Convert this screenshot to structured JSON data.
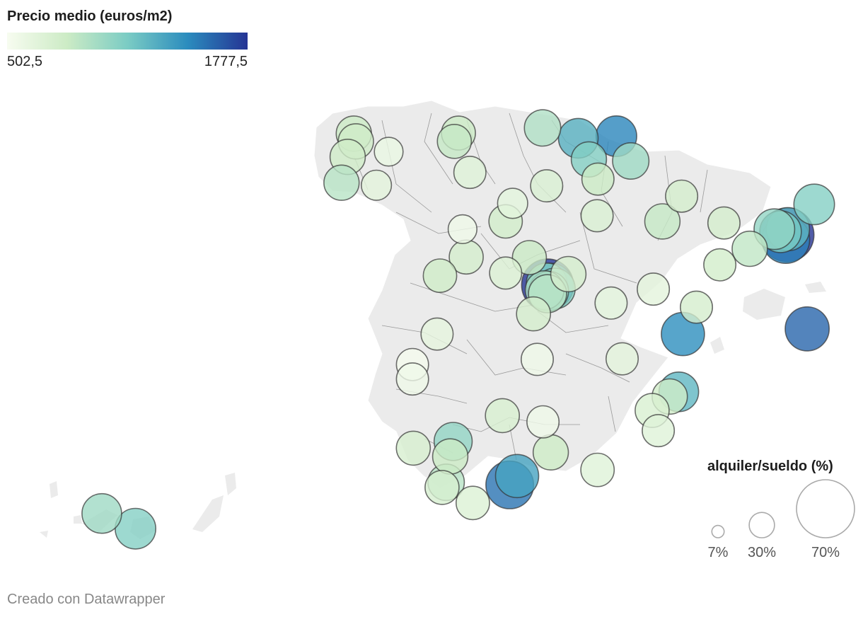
{
  "color_legend": {
    "title": "Precio medio (euros/m2)",
    "min_label": "502,5",
    "max_label": "1777,5",
    "min": 502.5,
    "max": 1777.5,
    "colors": [
      "#f7fcf0",
      "#ccebc5",
      "#7bccc4",
      "#2b8cbe",
      "#253494"
    ]
  },
  "size_legend": {
    "title": "alquiler/sueldo (%)",
    "items": [
      {
        "label": "7%",
        "value": 7
      },
      {
        "label": "30%",
        "value": 30
      },
      {
        "label": "70%",
        "value": 70
      }
    ]
  },
  "credit": "Creado con Datawrapper",
  "map_style": {
    "land_fill": "#ebebeb",
    "border_color": "#999999",
    "bubble_stroke": "#333333",
    "legend_stroke": "#aaaaaa"
  },
  "chart_data": {
    "type": "proportional-symbol-map",
    "region": "España (provincias)",
    "size_metric": "alquiler/sueldo (%)",
    "color_metric": "Precio medio (euros/m2)",
    "points": [
      {
        "lon": -8.4,
        "lat": 43.35,
        "price": 820,
        "pct": 30
      },
      {
        "lon": -8.35,
        "lat": 43.2,
        "price": 800,
        "pct": 30
      },
      {
        "lon": -8.55,
        "lat": 42.9,
        "price": 800,
        "pct": 30
      },
      {
        "lon": -8.7,
        "lat": 42.4,
        "price": 900,
        "pct": 30
      },
      {
        "lon": -7.55,
        "lat": 43.0,
        "price": 600,
        "pct": 20
      },
      {
        "lon": -7.85,
        "lat": 42.35,
        "price": 650,
        "pct": 22
      },
      {
        "lon": -5.85,
        "lat": 43.36,
        "price": 820,
        "pct": 28
      },
      {
        "lon": -5.95,
        "lat": 43.2,
        "price": 850,
        "pct": 28
      },
      {
        "lon": -3.8,
        "lat": 43.46,
        "price": 930,
        "pct": 32
      },
      {
        "lon": -2.93,
        "lat": 43.26,
        "price": 1280,
        "pct": 38
      },
      {
        "lon": -2.0,
        "lat": 43.3,
        "price": 1480,
        "pct": 40
      },
      {
        "lon": -2.67,
        "lat": 42.85,
        "price": 1100,
        "pct": 30
      },
      {
        "lon": -1.65,
        "lat": 42.82,
        "price": 1000,
        "pct": 32
      },
      {
        "lon": -2.45,
        "lat": 42.47,
        "price": 820,
        "pct": 25
      },
      {
        "lon": -3.7,
        "lat": 42.34,
        "price": 720,
        "pct": 25
      },
      {
        "lon": -5.57,
        "lat": 42.6,
        "price": 680,
        "pct": 25
      },
      {
        "lon": -4.53,
        "lat": 42.0,
        "price": 640,
        "pct": 22
      },
      {
        "lon": -5.75,
        "lat": 41.5,
        "price": 560,
        "pct": 20
      },
      {
        "lon": -4.7,
        "lat": 41.65,
        "price": 780,
        "pct": 27
      },
      {
        "lon": -2.47,
        "lat": 41.76,
        "price": 720,
        "pct": 25
      },
      {
        "lon": -0.88,
        "lat": 41.65,
        "price": 850,
        "pct": 30
      },
      {
        "lon": -0.41,
        "lat": 42.14,
        "price": 760,
        "pct": 25
      },
      {
        "lon": 0.62,
        "lat": 41.62,
        "price": 760,
        "pct": 25
      },
      {
        "lon": 2.16,
        "lat": 41.39,
        "price": 1777.5,
        "pct": 70
      },
      {
        "lon": 2.13,
        "lat": 41.3,
        "price": 1500,
        "pct": 55
      },
      {
        "lon": 2.18,
        "lat": 41.5,
        "price": 1250,
        "pct": 45
      },
      {
        "lon": 2.0,
        "lat": 41.45,
        "price": 1150,
        "pct": 42
      },
      {
        "lon": 1.85,
        "lat": 41.5,
        "price": 1050,
        "pct": 40
      },
      {
        "lon": 2.82,
        "lat": 41.98,
        "price": 1100,
        "pct": 40
      },
      {
        "lon": 1.25,
        "lat": 41.12,
        "price": 870,
        "pct": 30
      },
      {
        "lon": 0.52,
        "lat": 40.81,
        "price": 780,
        "pct": 25
      },
      {
        "lon": -5.66,
        "lat": 40.96,
        "price": 760,
        "pct": 28
      },
      {
        "lon": -4.12,
        "lat": 40.95,
        "price": 830,
        "pct": 28
      },
      {
        "lon": -3.7,
        "lat": 40.45,
        "price": 1100,
        "pct": 40
      },
      {
        "lon": -3.68,
        "lat": 40.42,
        "price": 1777.5,
        "pct": 65
      },
      {
        "lon": -3.6,
        "lat": 40.4,
        "price": 1400,
        "pct": 50
      },
      {
        "lon": -3.5,
        "lat": 40.35,
        "price": 1100,
        "pct": 40
      },
      {
        "lon": -3.65,
        "lat": 40.3,
        "price": 1000,
        "pct": 38
      },
      {
        "lon": -3.75,
        "lat": 40.32,
        "price": 950,
        "pct": 36
      },
      {
        "lon": -3.68,
        "lat": 40.25,
        "price": 900,
        "pct": 35
      },
      {
        "lon": -3.17,
        "lat": 40.63,
        "price": 760,
        "pct": 30
      },
      {
        "lon": -6.3,
        "lat": 40.6,
        "price": 800,
        "pct": 27
      },
      {
        "lon": -4.7,
        "lat": 40.65,
        "price": 700,
        "pct": 25
      },
      {
        "lon": -1.1,
        "lat": 40.34,
        "price": 650,
        "pct": 25
      },
      {
        "lon": -0.05,
        "lat": 39.99,
        "price": 760,
        "pct": 25
      },
      {
        "lon": -6.37,
        "lat": 39.47,
        "price": 630,
        "pct": 25
      },
      {
        "lon": -4.02,
        "lat": 39.86,
        "price": 760,
        "pct": 28
      },
      {
        "lon": -2.13,
        "lat": 40.07,
        "price": 640,
        "pct": 25
      },
      {
        "lon": -0.38,
        "lat": 39.47,
        "price": 1450,
        "pct": 45
      },
      {
        "lon": 2.65,
        "lat": 39.57,
        "price": 1600,
        "pct": 47
      },
      {
        "lon": -6.97,
        "lat": 38.88,
        "price": 520,
        "pct": 25
      },
      {
        "lon": -6.97,
        "lat": 38.6,
        "price": 560,
        "pct": 25
      },
      {
        "lon": -3.93,
        "lat": 38.98,
        "price": 560,
        "pct": 25
      },
      {
        "lon": -1.86,
        "lat": 38.99,
        "price": 650,
        "pct": 25
      },
      {
        "lon": -0.48,
        "lat": 38.35,
        "price": 1250,
        "pct": 38
      },
      {
        "lon": -0.7,
        "lat": 38.26,
        "price": 800,
        "pct": 30
      },
      {
        "lon": -4.78,
        "lat": 37.89,
        "price": 730,
        "pct": 28
      },
      {
        "lon": -3.79,
        "lat": 37.77,
        "price": 560,
        "pct": 25
      },
      {
        "lon": -1.13,
        "lat": 37.99,
        "price": 730,
        "pct": 28
      },
      {
        "lon": -0.98,
        "lat": 37.6,
        "price": 680,
        "pct": 25
      },
      {
        "lon": -6.95,
        "lat": 37.26,
        "price": 740,
        "pct": 28
      },
      {
        "lon": -5.98,
        "lat": 37.39,
        "price": 1050,
        "pct": 35
      },
      {
        "lon": -6.05,
        "lat": 37.1,
        "price": 820,
        "pct": 30
      },
      {
        "lon": -3.6,
        "lat": 37.18,
        "price": 810,
        "pct": 30
      },
      {
        "lon": -2.46,
        "lat": 36.84,
        "price": 680,
        "pct": 27
      },
      {
        "lon": -4.42,
        "lat": 36.72,
        "price": 1350,
        "pct": 45
      },
      {
        "lon": -4.6,
        "lat": 36.55,
        "price": 1550,
        "pct": 55
      },
      {
        "lon": -6.15,
        "lat": 36.6,
        "price": 900,
        "pct": 32
      },
      {
        "lon": -6.25,
        "lat": 36.5,
        "price": 750,
        "pct": 28
      },
      {
        "lon": -5.5,
        "lat": 36.2,
        "price": 700,
        "pct": 27
      },
      {
        "lon": -16.25,
        "lat": 28.47,
        "price": 1000,
        "pct": 38
      },
      {
        "lon": -15.43,
        "lat": 28.1,
        "price": 1100,
        "pct": 40
      }
    ]
  }
}
